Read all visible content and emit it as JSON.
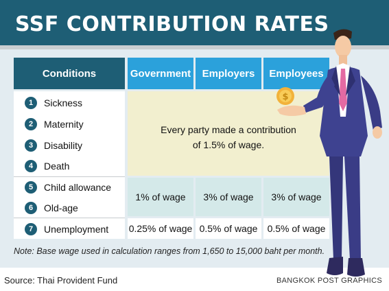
{
  "title": "SSF CONTRIBUTION RATES",
  "table": {
    "headers": {
      "conditions": "Conditions",
      "government": "Government",
      "employers": "Employers",
      "employees": "Employees"
    },
    "conditions": [
      {
        "num": "1",
        "label": "Sickness"
      },
      {
        "num": "2",
        "label": "Maternity"
      },
      {
        "num": "3",
        "label": "Disability"
      },
      {
        "num": "4",
        "label": "Death"
      },
      {
        "num": "5",
        "label": "Child allowance"
      },
      {
        "num": "6",
        "label": "Old-age"
      },
      {
        "num": "7",
        "label": "Unemployment"
      }
    ],
    "group1_text_line1": "Every party made a contribution",
    "group1_text_line2": "of 1.5% of wage.",
    "group2": {
      "government": "1% of wage",
      "employers": "3% of wage",
      "employees": "3% of wage"
    },
    "group3": {
      "government": "0.25% of wage",
      "employers": "0.5% of wage",
      "employees": "0.5% of wage"
    }
  },
  "note": "Note: Base wage used in calculation ranges from 1,650 to 15,000 baht per month.",
  "source": "Source: Thai Provident Fund",
  "credit": "BANGKOK POST GRAPHICS",
  "colors": {
    "title_bg": "#1e5e75",
    "header_dark": "#1e5e75",
    "header_blue": "#2ba1db",
    "panel_bg": "#e3ecf1",
    "yellow_cell": "#f2efcf",
    "mint_cell": "#d4e9e9"
  }
}
